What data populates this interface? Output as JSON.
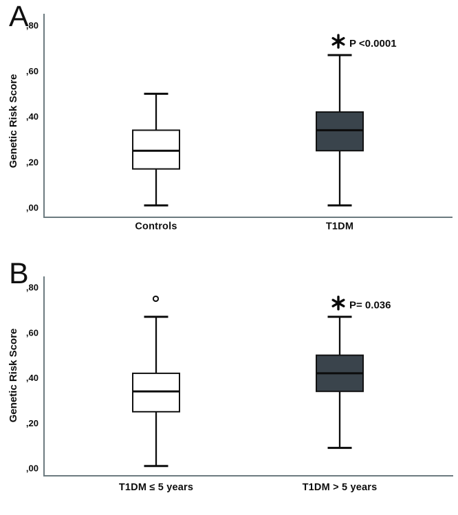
{
  "figure_title": "Genetic Risk Score boxplots",
  "colors": {
    "background": "#ffffff",
    "axis": "#6b7a7f",
    "box_stroke": "#121212",
    "median": "#0c0c0c",
    "whisker": "#0c0c0c",
    "dark_box_fill": "#3a444c",
    "white_box_fill": "#ffffff",
    "text": "#0d0d0d"
  },
  "chart_data": [
    {
      "type": "boxplot",
      "panel_letter": "A",
      "title": "",
      "xlabel": "",
      "ylabel": "Genetic Risk Score",
      "ylim": [
        0.0,
        0.8
      ],
      "ytick_values": [
        0.0,
        0.2,
        0.4,
        0.6,
        0.8
      ],
      "ytick_labels": [
        ",00",
        ",20",
        ",40",
        ",60",
        ",80"
      ],
      "grid": false,
      "legend": false,
      "categories": [
        "Controls",
        "T1DM"
      ],
      "series": [
        {
          "name": "Controls",
          "whisker_low": 0.01,
          "q1": 0.17,
          "median": 0.25,
          "q3": 0.34,
          "whisker_high": 0.5,
          "outliers": [],
          "fill": "#ffffff",
          "significance_marker": "",
          "significance_label": ""
        },
        {
          "name": "T1DM",
          "whisker_low": 0.01,
          "q1": 0.25,
          "median": 0.34,
          "q3": 0.42,
          "whisker_high": 0.67,
          "outliers": [],
          "fill": "#3a444c",
          "significance_marker": "✱",
          "significance_label": "P <0.0001"
        }
      ]
    },
    {
      "type": "boxplot",
      "panel_letter": "B",
      "title": "",
      "xlabel": "",
      "ylabel": "Genetic Risk Score",
      "ylim": [
        0.0,
        0.8
      ],
      "ytick_values": [
        0.0,
        0.2,
        0.4,
        0.6,
        0.8
      ],
      "ytick_labels": [
        ",00",
        ",20",
        ",40",
        ",60",
        ",80"
      ],
      "grid": false,
      "legend": false,
      "categories": [
        "T1DM ≤ 5 years",
        "T1DM > 5 years"
      ],
      "series": [
        {
          "name": "T1DM ≤ 5 years",
          "whisker_low": 0.01,
          "q1": 0.25,
          "median": 0.34,
          "q3": 0.42,
          "whisker_high": 0.67,
          "outliers": [
            0.75
          ],
          "fill": "#ffffff",
          "significance_marker": "",
          "significance_label": ""
        },
        {
          "name": "T1DM > 5 years",
          "whisker_low": 0.09,
          "q1": 0.34,
          "median": 0.42,
          "q3": 0.5,
          "whisker_high": 0.67,
          "outliers": [],
          "fill": "#3a444c",
          "significance_marker": "✱",
          "significance_label": "P= 0.036"
        }
      ]
    }
  ]
}
